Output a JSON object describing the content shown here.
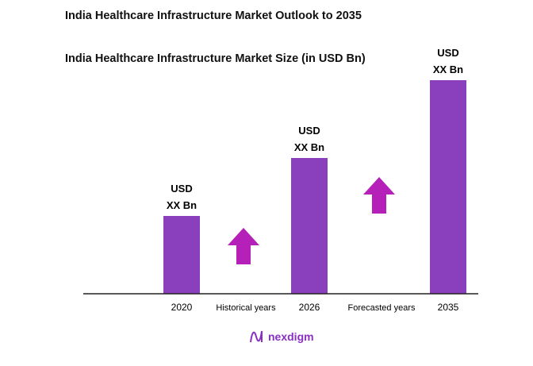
{
  "title": "India Healthcare Infrastructure Market Outlook to 2035",
  "subtitle": "India Healthcare Infrastructure Market Size (in USD Bn)",
  "logo_text": "nexdigm",
  "colors": {
    "bar": "#8a3fbc",
    "arrow": "#b520b8",
    "logo": "#8a2fc4"
  },
  "chart_data": {
    "type": "bar",
    "title": "India Healthcare Infrastructure Market Size (in USD Bn)",
    "categories": [
      "2020",
      "2026",
      "2035"
    ],
    "data_labels": [
      {
        "line1": "USD",
        "line2": "XX Bn"
      },
      {
        "line1": "USD",
        "line2": "XX Bn"
      },
      {
        "line1": "USD",
        "line2": "XX Bn"
      }
    ],
    "period_labels": [
      "Historical years",
      "Forecasted years"
    ],
    "annotations": [
      "arrow-up-icon",
      "arrow-up-icon"
    ],
    "grid": false,
    "legend": "none"
  }
}
